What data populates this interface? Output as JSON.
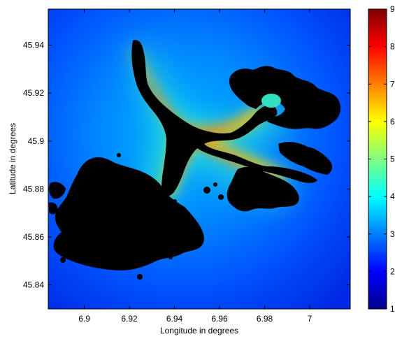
{
  "chart_data": {
    "type": "heatmap",
    "title": "",
    "xlabel": "Longitude in degrees",
    "ylabel": "Latitude in degrees",
    "xlim": [
      6.884,
      7.018
    ],
    "ylim": [
      45.83,
      45.955
    ],
    "xticks": [
      6.9,
      6.92,
      6.94,
      6.96,
      6.98,
      7
    ],
    "xtick_labels": [
      "6.9",
      "6.92",
      "6.94",
      "6.96",
      "6.98",
      "7"
    ],
    "yticks": [
      45.84,
      45.86,
      45.88,
      45.9,
      45.92,
      45.94
    ],
    "ytick_labels": [
      "45.84",
      "45.86",
      "45.88",
      "45.9",
      "45.92",
      "45.94"
    ],
    "colormap": "jet",
    "colorbar": {
      "range": [
        1,
        9
      ],
      "ticks": [
        1,
        2,
        3,
        4,
        5,
        6,
        7,
        8,
        9
      ],
      "tick_labels": [
        "1",
        "2",
        "3",
        "4",
        "5",
        "6",
        "7",
        "8",
        "9"
      ]
    },
    "masked_color": "#000000",
    "grid": false
  }
}
